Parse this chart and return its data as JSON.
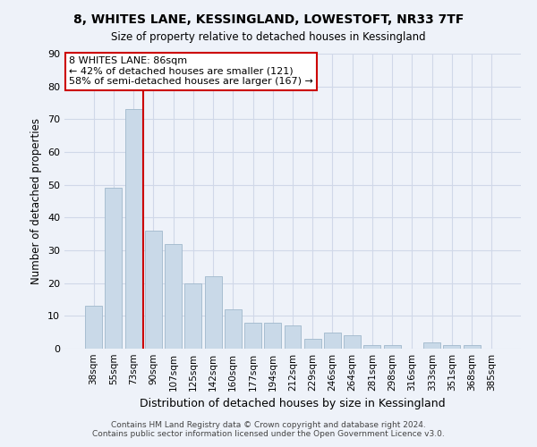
{
  "title1": "8, WHITES LANE, KESSINGLAND, LOWESTOFT, NR33 7TF",
  "title2": "Size of property relative to detached houses in Kessingland",
  "xlabel": "Distribution of detached houses by size in Kessingland",
  "ylabel": "Number of detached properties",
  "categories": [
    "38sqm",
    "55sqm",
    "73sqm",
    "90sqm",
    "107sqm",
    "125sqm",
    "142sqm",
    "160sqm",
    "177sqm",
    "194sqm",
    "212sqm",
    "229sqm",
    "246sqm",
    "264sqm",
    "281sqm",
    "298sqm",
    "316sqm",
    "333sqm",
    "351sqm",
    "368sqm",
    "385sqm"
  ],
  "values": [
    13,
    49,
    73,
    36,
    32,
    20,
    22,
    12,
    8,
    8,
    7,
    3,
    5,
    4,
    1,
    1,
    0,
    2,
    1,
    1,
    0
  ],
  "bar_color": "#c9d9e8",
  "bar_edge_color": "#a0b8cc",
  "vline_index": 3,
  "vline_color": "#cc0000",
  "annotation_text": "8 WHITES LANE: 86sqm\n← 42% of detached houses are smaller (121)\n58% of semi-detached houses are larger (167) →",
  "annotation_box_color": "#cc0000",
  "ylim": [
    0,
    90
  ],
  "yticks": [
    0,
    10,
    20,
    30,
    40,
    50,
    60,
    70,
    80,
    90
  ],
  "footer1": "Contains HM Land Registry data © Crown copyright and database right 2024.",
  "footer2": "Contains public sector information licensed under the Open Government Licence v3.0.",
  "grid_color": "#d0d8e8",
  "background_color": "#eef2f9"
}
